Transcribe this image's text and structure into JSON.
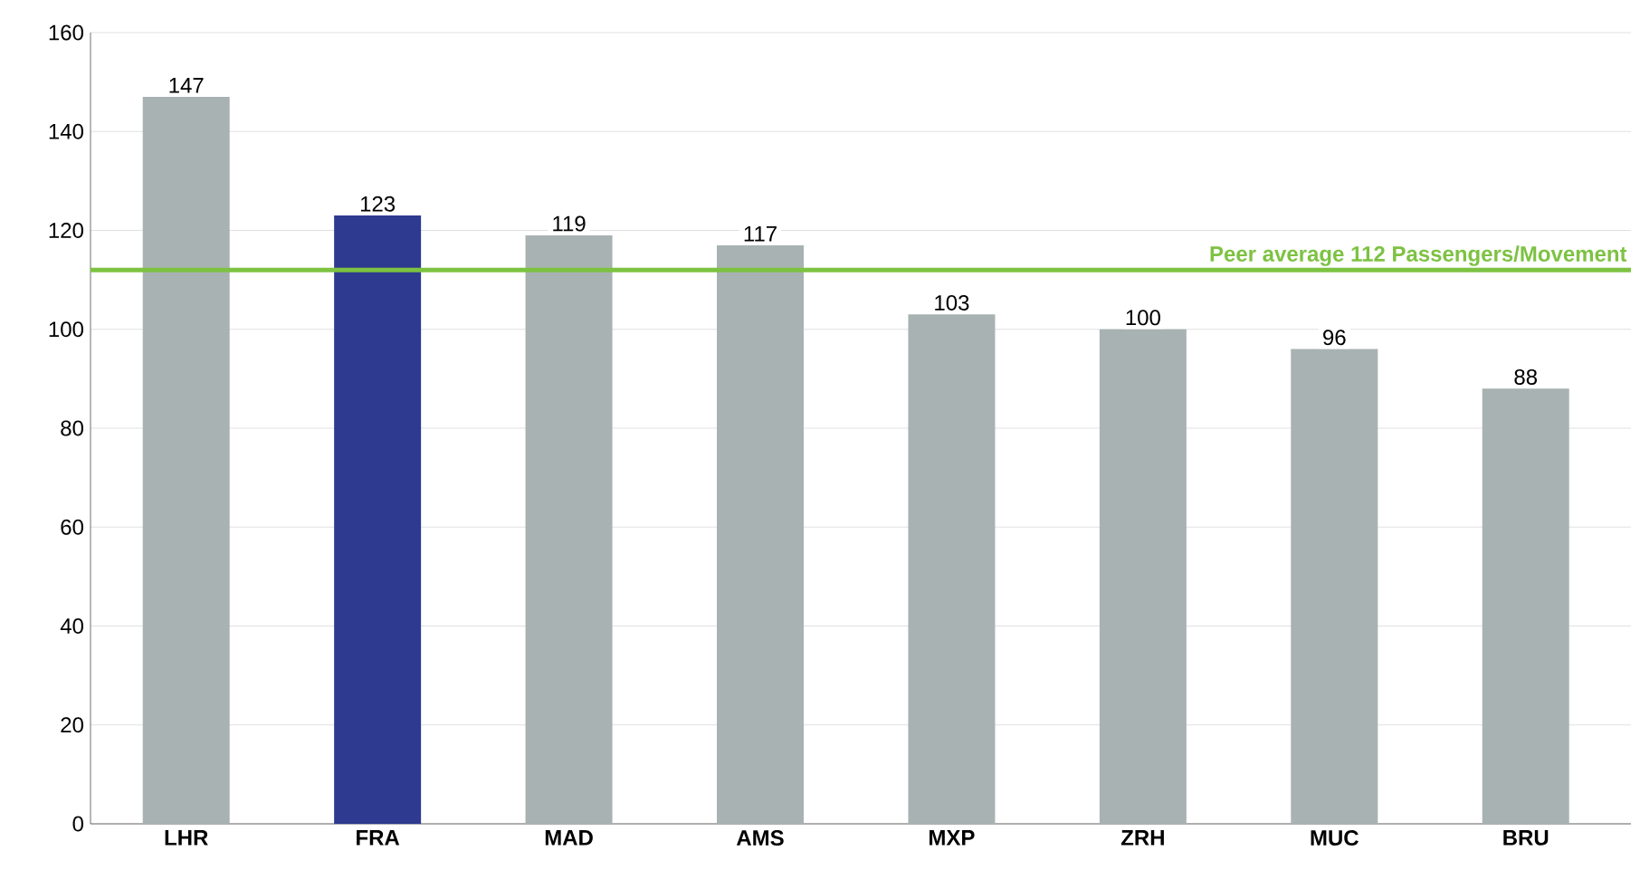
{
  "chart_data": {
    "type": "bar",
    "categories": [
      "LHR",
      "FRA",
      "MAD",
      "AMS",
      "MXP",
      "ZRH",
      "MUC",
      "BRU"
    ],
    "values": [
      147,
      123,
      119,
      117,
      103,
      100,
      96,
      88
    ],
    "colors": [
      "#a9b2b2",
      "#2e3a8f",
      "#a9b2b2",
      "#a9b2b2",
      "#a9b2b2",
      "#a9b2b2",
      "#a9b2b2",
      "#a9b2b2"
    ],
    "ylim": [
      0,
      160
    ],
    "yticks": [
      0,
      20,
      40,
      60,
      80,
      100,
      120,
      140,
      160
    ],
    "grid": "y",
    "data_labels": true,
    "ref_lines": [
      {
        "axis": "y",
        "value": 112,
        "label": "Peer average 112 Passengers/Movement",
        "color": "#7dc242"
      }
    ]
  }
}
